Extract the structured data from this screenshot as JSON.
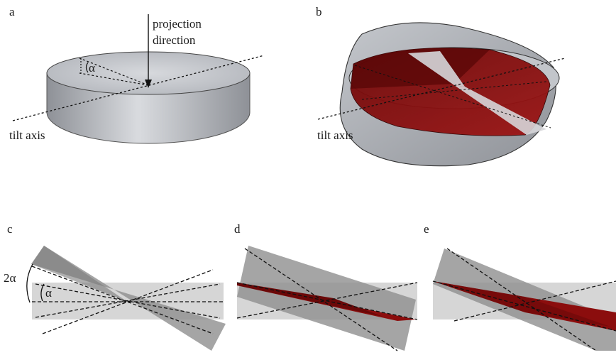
{
  "panels": {
    "a": {
      "label": "a",
      "projection_text_line1": "projection",
      "projection_text_line2": "direction",
      "tilt_axis": "tilt axis",
      "alpha": "α"
    },
    "b": {
      "label": "b",
      "tilt_axis": "tilt axis"
    },
    "c": {
      "label": "c",
      "two_alpha": "2α",
      "alpha": "α"
    },
    "d": {
      "label": "d"
    },
    "e": {
      "label": "e"
    }
  },
  "colors": {
    "disc_gray": "#b9bcc1",
    "disc_edge": "#7d8087",
    "wedge_red": "#8b0d0d",
    "wedge_red_dark": "#5a0606",
    "cone_dark": "#8f8f8f",
    "band_light": "#d6d6d6"
  }
}
